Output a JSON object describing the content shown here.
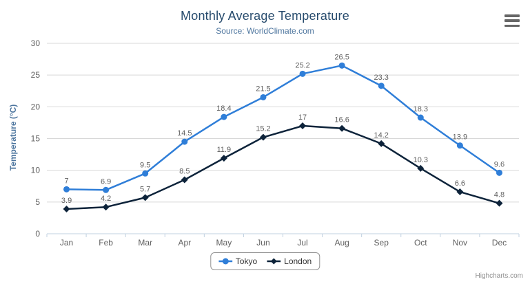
{
  "header": {
    "title": "Monthly Average Temperature",
    "subtitle": "Source: WorldClimate.com"
  },
  "menu": {
    "icon": "hamburger-export-menu"
  },
  "credits": {
    "label": "Highcharts.com"
  },
  "colors": {
    "title": "#274b6d",
    "subtitle": "#4d759e",
    "axis_line": "#C0D0E0",
    "gridline": "#D8D8D8",
    "axis_labels": "#606060",
    "data_labels": "#606060",
    "tokyo": "#2f7ed8",
    "london": "#0d233a"
  },
  "chart_data": {
    "type": "line",
    "title": "Monthly Average Temperature",
    "subtitle": "Source: WorldClimate.com",
    "categories": [
      "Jan",
      "Feb",
      "Mar",
      "Apr",
      "May",
      "Jun",
      "Jul",
      "Aug",
      "Sep",
      "Oct",
      "Nov",
      "Dec"
    ],
    "series": [
      {
        "name": "Tokyo",
        "color": "#2f7ed8",
        "marker": "circle",
        "values": [
          7,
          6.9,
          9.5,
          14.5,
          18.4,
          21.5,
          25.2,
          26.5,
          23.3,
          18.3,
          13.9,
          9.6
        ]
      },
      {
        "name": "London",
        "color": "#0d233a",
        "marker": "diamond",
        "values": [
          3.9,
          4.2,
          5.7,
          8.5,
          11.9,
          15.2,
          17,
          16.6,
          14.2,
          10.3,
          6.6,
          4.8
        ]
      }
    ],
    "xlabel": "",
    "ylabel": "Temperature (°C)",
    "ylim": [
      0,
      30
    ],
    "ytick_step": 5,
    "yticks": [
      0,
      5,
      10,
      15,
      20,
      25,
      30
    ],
    "grid": true,
    "data_labels": true,
    "legend_position": "bottom"
  }
}
